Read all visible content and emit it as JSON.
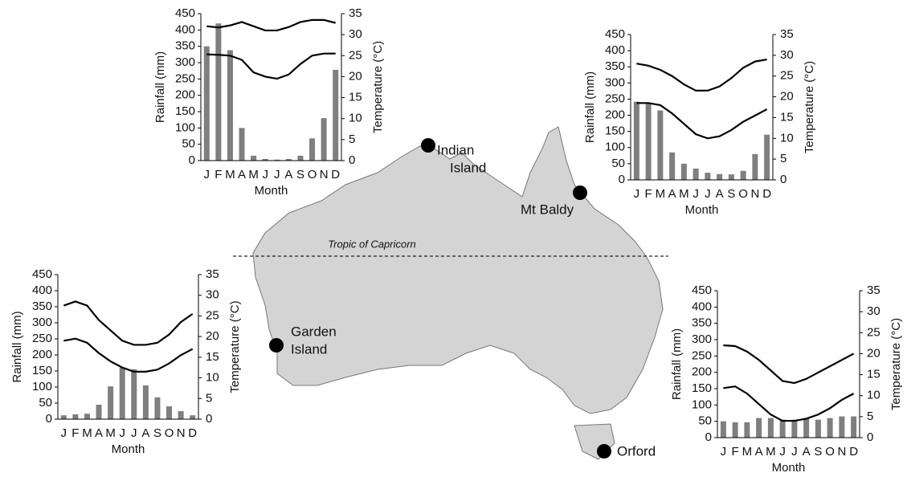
{
  "chart_data": [
    {
      "type": "combo",
      "categories": [
        "J",
        "F",
        "M",
        "A",
        "M",
        "J",
        "J",
        "A",
        "S",
        "O",
        "N",
        "D"
      ],
      "x_label": "Month",
      "y_label": "Rainfall (mm)",
      "y2_label": "Temperature (°C)",
      "ylim": [
        0,
        450
      ],
      "yticks": [
        0,
        50,
        100,
        150,
        200,
        250,
        300,
        350,
        400,
        450
      ],
      "y2lim": [
        0,
        35
      ],
      "y2ticks": [
        0,
        5,
        10,
        15,
        20,
        25,
        30,
        35
      ],
      "series": [
        {
          "type": "bar",
          "color": "#7f7f7f",
          "values": [
            350,
            420,
            338,
            100,
            15,
            5,
            3,
            5,
            15,
            68,
            130,
            278
          ]
        },
        {
          "type": "line",
          "axis": "y2",
          "color": "#000000",
          "values": [
            32,
            31.7,
            32.2,
            33,
            32,
            31,
            31,
            31.8,
            33,
            33.5,
            33.5,
            32.8
          ]
        },
        {
          "type": "line",
          "axis": "y2",
          "color": "#000000",
          "values": [
            25.3,
            25.2,
            25,
            24,
            21,
            20,
            19.5,
            20.5,
            23,
            25,
            25.5,
            25.5
          ]
        }
      ]
    },
    {
      "type": "combo",
      "categories": [
        "J",
        "F",
        "M",
        "A",
        "M",
        "J",
        "J",
        "A",
        "S",
        "O",
        "N",
        "D"
      ],
      "x_label": "Month",
      "y_label": "Rainfall (mm)",
      "y2_label": "Temperature (°C)",
      "ylim": [
        0,
        450
      ],
      "yticks": [
        0,
        50,
        100,
        150,
        200,
        250,
        300,
        350,
        400,
        450
      ],
      "y2lim": [
        0,
        35
      ],
      "y2ticks": [
        0,
        5,
        10,
        15,
        20,
        25,
        30,
        35
      ],
      "series": [
        {
          "type": "bar",
          "color": "#7f7f7f",
          "values": [
            242,
            237,
            215,
            85,
            50,
            35,
            22,
            18,
            17,
            28,
            80,
            140
          ]
        },
        {
          "type": "line",
          "axis": "y2",
          "color": "#000000",
          "values": [
            28,
            27.5,
            26.5,
            25,
            23,
            21.5,
            21.5,
            22.5,
            24.5,
            27,
            28.5,
            29
          ]
        },
        {
          "type": "line",
          "axis": "y2",
          "color": "#000000",
          "values": [
            18.5,
            18.5,
            18,
            16,
            13.5,
            11,
            10,
            10.5,
            12,
            14,
            15.5,
            17
          ]
        }
      ]
    },
    {
      "type": "combo",
      "categories": [
        "J",
        "F",
        "M",
        "A",
        "M",
        "J",
        "J",
        "A",
        "S",
        "O",
        "N",
        "D"
      ],
      "x_label": "Month",
      "y_label": "Rainfall (mm)",
      "y2_label": "Temperature (°C)",
      "ylim": [
        0,
        450
      ],
      "yticks": [
        0,
        50,
        100,
        150,
        200,
        250,
        300,
        350,
        400,
        450
      ],
      "y2lim": [
        0,
        35
      ],
      "y2ticks": [
        0,
        5,
        10,
        15,
        20,
        25,
        30,
        35
      ],
      "series": [
        {
          "type": "bar",
          "color": "#7f7f7f",
          "values": [
            12,
            15,
            17,
            45,
            102,
            160,
            155,
            105,
            68,
            40,
            25,
            12
          ]
        },
        {
          "type": "line",
          "axis": "y2",
          "color": "#000000",
          "values": [
            27.5,
            28.5,
            27.5,
            24,
            21.5,
            19,
            18,
            18,
            18.5,
            20.5,
            23.5,
            25.5
          ]
        },
        {
          "type": "line",
          "axis": "y2",
          "color": "#000000",
          "values": [
            19,
            19.5,
            18.5,
            16,
            14,
            12.5,
            11.5,
            11.5,
            12,
            13.5,
            15.5,
            17
          ]
        }
      ]
    },
    {
      "type": "combo",
      "categories": [
        "J",
        "F",
        "M",
        "A",
        "M",
        "J",
        "J",
        "A",
        "S",
        "O",
        "N",
        "D"
      ],
      "x_label": "Month",
      "y_label": "Rainfall (mm)",
      "y2_label": "Temperature (°C)",
      "ylim": [
        0,
        450
      ],
      "yticks": [
        0,
        50,
        100,
        150,
        200,
        250,
        300,
        350,
        400,
        450
      ],
      "y2lim": [
        0,
        35
      ],
      "y2ticks": [
        0,
        5,
        10,
        15,
        20,
        25,
        30,
        35
      ],
      "series": [
        {
          "type": "bar",
          "color": "#7f7f7f",
          "values": [
            50,
            47,
            47,
            60,
            60,
            55,
            55,
            60,
            55,
            60,
            65,
            65
          ]
        },
        {
          "type": "line",
          "axis": "y2",
          "color": "#000000",
          "values": [
            22,
            21.8,
            20.5,
            18.5,
            16,
            13.5,
            13,
            14,
            15.5,
            17,
            18.5,
            20
          ]
        },
        {
          "type": "line",
          "axis": "y2",
          "color": "#000000",
          "values": [
            11.8,
            12.2,
            10.5,
            8,
            5.5,
            4,
            4,
            4.5,
            5.5,
            7,
            9,
            10.5
          ]
        }
      ]
    }
  ],
  "map": {
    "tropic": "Tropic of Capricorn",
    "sites": [
      {
        "label": [
          "Indian",
          "Island"
        ]
      },
      {
        "label": [
          "Mt Baldy"
        ]
      },
      {
        "label": [
          "Garden",
          "Island"
        ]
      },
      {
        "label": [
          "Orford"
        ]
      }
    ]
  }
}
